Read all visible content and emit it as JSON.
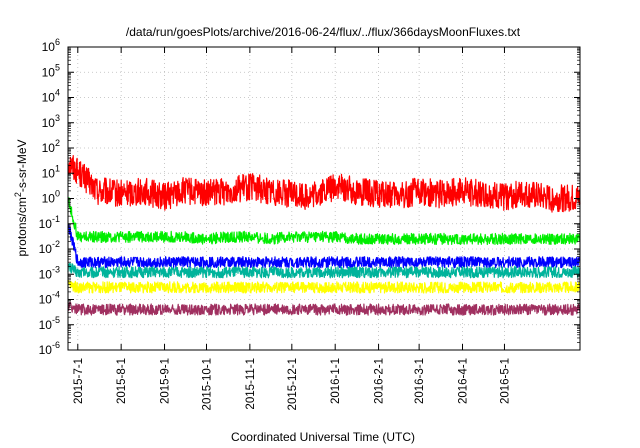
{
  "chart_data": {
    "type": "line",
    "title": "/data/run/goesPlots/archive/2016-06-24/flux/../flux/366daysMoonFluxes.txt",
    "xlabel": "Coordinated Universal Time (UTC)",
    "ylabel": "protons/cm2-s-sr-MeV",
    "y_scale": "log",
    "ylim": [
      1e-06,
      1000000.0
    ],
    "y_ticks": [
      {
        "base": "10",
        "exp": "-6"
      },
      {
        "base": "10",
        "exp": "-5"
      },
      {
        "base": "10",
        "exp": "-4"
      },
      {
        "base": "10",
        "exp": "-3"
      },
      {
        "base": "10",
        "exp": "-2"
      },
      {
        "base": "10",
        "exp": "-1"
      },
      {
        "base": "10",
        "exp": "0"
      },
      {
        "base": "10",
        "exp": "1"
      },
      {
        "base": "10",
        "exp": "2"
      },
      {
        "base": "10",
        "exp": "3"
      },
      {
        "base": "10",
        "exp": "4"
      },
      {
        "base": "10",
        "exp": "5"
      },
      {
        "base": "10",
        "exp": "6"
      }
    ],
    "xlim": [
      "2015-06-24",
      "2016-06-24"
    ],
    "x_ticks": [
      "2015-7-1",
      "2015-8-1",
      "2015-9-1",
      "2015-10-1",
      "2015-11-1",
      "2015-12-1",
      "2016-1-1",
      "2016-2-1",
      "2016-3-1",
      "2016-4-1",
      "2016-5-1"
    ],
    "grid": true,
    "legend": "none",
    "series": [
      {
        "color": "#ff0000",
        "x": [
          "2015-06-24",
          "2015-07-01",
          "2015-07-15",
          "2015-08-01",
          "2015-08-15",
          "2015-09-01",
          "2015-09-15",
          "2015-10-01",
          "2015-10-15",
          "2015-11-01",
          "2015-11-15",
          "2015-12-01",
          "2015-12-15",
          "2016-01-01",
          "2016-01-15",
          "2016-02-01",
          "2016-02-15",
          "2016-03-01",
          "2016-03-15",
          "2016-04-01",
          "2016-04-15",
          "2016-05-01",
          "2016-05-15",
          "2016-06-01",
          "2016-06-24"
        ],
        "y": [
          30,
          12,
          2,
          1.5,
          2,
          1.2,
          2,
          1.5,
          2,
          3,
          2,
          1.5,
          1.2,
          3,
          2,
          1.5,
          1.2,
          2,
          1.5,
          2,
          1.5,
          1.2,
          1.5,
          1,
          1
        ]
      },
      {
        "color": "#00ee00",
        "x": [
          "2015-06-24",
          "2015-07-01",
          "2015-07-15",
          "2015-08-01",
          "2015-08-15",
          "2015-09-01",
          "2015-09-15",
          "2015-10-01",
          "2015-10-15",
          "2015-11-01",
          "2015-11-15",
          "2015-12-01",
          "2015-12-15",
          "2016-01-01",
          "2016-01-15",
          "2016-02-01",
          "2016-02-15",
          "2016-03-01",
          "2016-03-15",
          "2016-04-01",
          "2016-04-15",
          "2016-05-01",
          "2016-05-15",
          "2016-06-01",
          "2016-06-24"
        ],
        "y": [
          1,
          0.03,
          0.03,
          0.03,
          0.03,
          0.03,
          0.03,
          0.025,
          0.03,
          0.03,
          0.025,
          0.03,
          0.03,
          0.03,
          0.025,
          0.025,
          0.025,
          0.025,
          0.025,
          0.025,
          0.025,
          0.025,
          0.025,
          0.025,
          0.025
        ]
      },
      {
        "color": "#0000ff",
        "x": [
          "2015-06-24",
          "2015-07-01",
          "2015-07-15",
          "2015-08-01",
          "2015-08-15",
          "2015-09-01",
          "2015-09-15",
          "2015-10-01",
          "2015-10-15",
          "2015-11-01",
          "2015-11-15",
          "2015-12-01",
          "2015-12-15",
          "2016-01-01",
          "2016-01-15",
          "2016-02-01",
          "2016-02-15",
          "2016-03-01",
          "2016-03-15",
          "2016-04-01",
          "2016-04-15",
          "2016-05-01",
          "2016-05-15",
          "2016-06-01",
          "2016-06-24"
        ],
        "y": [
          0.1,
          0.003,
          0.003,
          0.003,
          0.003,
          0.003,
          0.003,
          0.003,
          0.003,
          0.003,
          0.003,
          0.003,
          0.003,
          0.003,
          0.003,
          0.003,
          0.003,
          0.003,
          0.003,
          0.003,
          0.003,
          0.003,
          0.003,
          0.003,
          0.003
        ]
      },
      {
        "color": "#00b39b",
        "x": [
          "2015-06-24",
          "2015-07-01",
          "2015-07-15",
          "2015-08-01",
          "2015-08-15",
          "2015-09-01",
          "2015-09-15",
          "2015-10-01",
          "2015-10-15",
          "2015-11-01",
          "2015-11-15",
          "2015-12-01",
          "2015-12-15",
          "2016-01-01",
          "2016-01-15",
          "2016-02-01",
          "2016-02-15",
          "2016-03-01",
          "2016-03-15",
          "2016-04-01",
          "2016-04-15",
          "2016-05-01",
          "2016-05-15",
          "2016-06-01",
          "2016-06-24"
        ],
        "y": [
          0.002,
          0.0012,
          0.0012,
          0.0012,
          0.0012,
          0.0012,
          0.0012,
          0.0012,
          0.0012,
          0.0012,
          0.0012,
          0.0012,
          0.0012,
          0.0012,
          0.0012,
          0.0012,
          0.0012,
          0.0012,
          0.0012,
          0.0012,
          0.0012,
          0.0012,
          0.0012,
          0.0012,
          0.0012
        ]
      },
      {
        "color": "#ffff00",
        "x": [
          "2015-06-24",
          "2015-07-01",
          "2015-07-15",
          "2015-08-01",
          "2015-08-15",
          "2015-09-01",
          "2015-09-15",
          "2015-10-01",
          "2015-10-15",
          "2015-11-01",
          "2015-11-15",
          "2015-12-01",
          "2015-12-15",
          "2016-01-01",
          "2016-01-15",
          "2016-02-01",
          "2016-02-15",
          "2016-03-01",
          "2016-03-15",
          "2016-04-01",
          "2016-04-15",
          "2016-05-01",
          "2016-05-15",
          "2016-06-01",
          "2016-06-24"
        ],
        "y": [
          0.0004,
          0.0003,
          0.0003,
          0.0003,
          0.0003,
          0.0003,
          0.0003,
          0.0003,
          0.0003,
          0.0003,
          0.0003,
          0.0003,
          0.0003,
          0.0003,
          0.0003,
          0.0003,
          0.0003,
          0.0003,
          0.0003,
          0.0003,
          0.0003,
          0.0003,
          0.0003,
          0.0003,
          0.0003
        ]
      },
      {
        "color": "#a03060",
        "x": [
          "2015-06-24",
          "2015-07-01",
          "2015-07-15",
          "2015-08-01",
          "2015-08-15",
          "2015-09-01",
          "2015-09-15",
          "2015-10-01",
          "2015-10-15",
          "2015-11-01",
          "2015-11-15",
          "2015-12-01",
          "2015-12-15",
          "2016-01-01",
          "2016-01-15",
          "2016-02-01",
          "2016-02-15",
          "2016-03-01",
          "2016-03-15",
          "2016-04-01",
          "2016-04-15",
          "2016-05-01",
          "2016-05-15",
          "2016-06-01",
          "2016-06-24"
        ],
        "y": [
          6e-05,
          4e-05,
          4e-05,
          4e-05,
          4e-05,
          4e-05,
          4e-05,
          4e-05,
          4e-05,
          4e-05,
          4e-05,
          4e-05,
          4e-05,
          4e-05,
          4e-05,
          4e-05,
          4e-05,
          4e-05,
          4e-05,
          4e-05,
          4e-05,
          4e-05,
          4e-05,
          4e-05,
          4e-05
        ]
      }
    ]
  }
}
